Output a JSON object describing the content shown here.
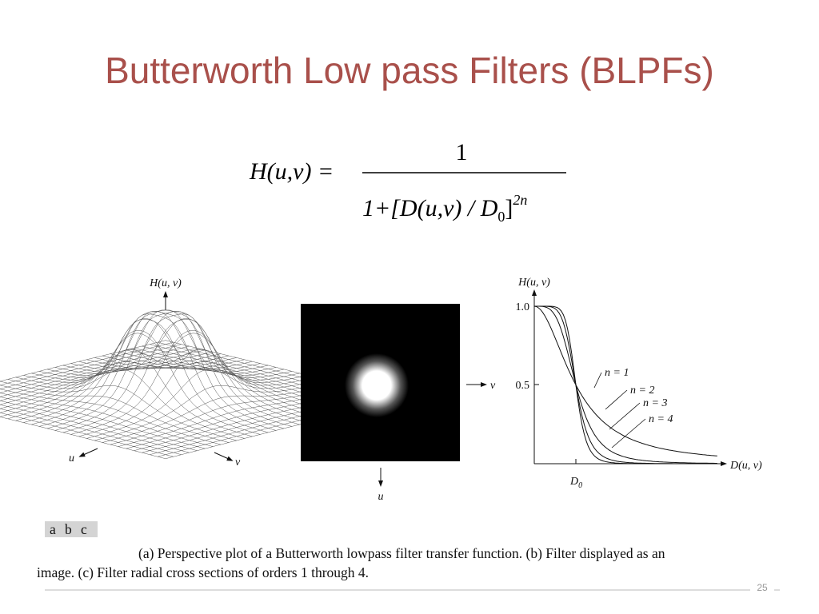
{
  "title": "Butterworth Low pass Filters (BLPFs)",
  "formula": {
    "lhs": "H(u,v) =",
    "numerator": "1",
    "denominator": "1+[D(u,v) / D",
    "subscript": "0",
    "bracket_close": "]",
    "exponent": "2n"
  },
  "figure_a": {
    "axis_h": "H(u, v)",
    "axis_u": "u",
    "axis_v": "v"
  },
  "figure_b": {
    "axis_v": "v",
    "axis_u": "u"
  },
  "figure_c": {
    "axis_y": "H(u, v)",
    "ytick_top": "1.0",
    "ytick_mid": "0.5",
    "curves": [
      "n = 1",
      "n = 2",
      "n = 3",
      "n = 4"
    ],
    "xtick": "D",
    "xtick_sub": "0",
    "axis_x": "D(u, v)"
  },
  "panel_tags": [
    "a",
    "b",
    "c"
  ],
  "caption": {
    "lines": [
      "(a) Perspective plot of a Butterworth lowpass filter transfer function. (b) Filter displayed as an",
      "image. (c) Filter radial cross sections of orders 1 through 4."
    ]
  },
  "page_number": "25"
}
